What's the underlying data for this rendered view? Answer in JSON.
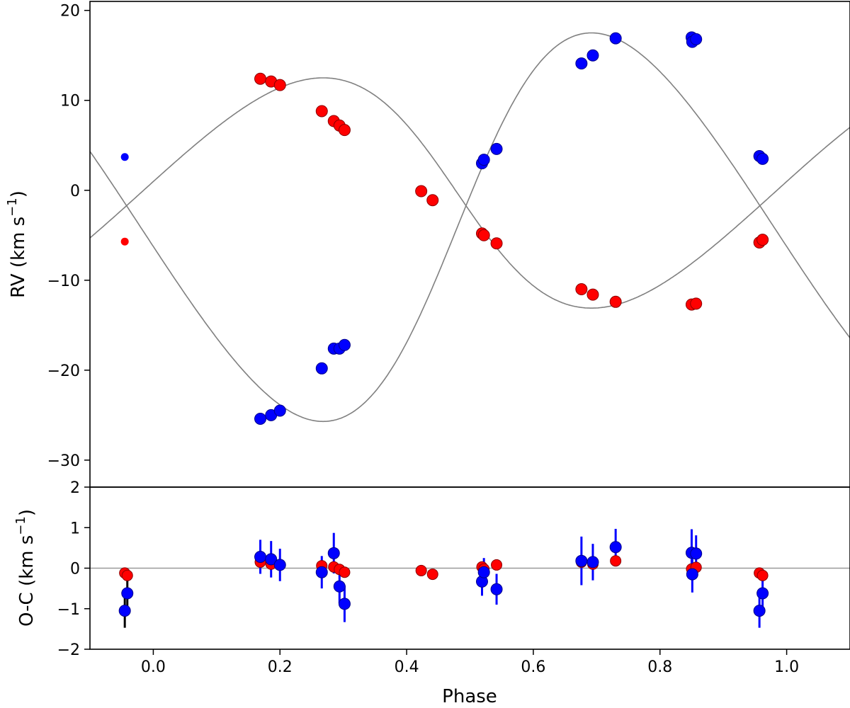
{
  "chart_data": [
    {
      "panel": "radial-velocity",
      "type": "scatter",
      "ylabel": "RV (km s",
      "ylabel_sup": "−1",
      "ylabel_close": ")",
      "xlim": [
        -0.1,
        1.1
      ],
      "ylim": [
        -33,
        21
      ],
      "yticks": [
        -30,
        -20,
        -10,
        0,
        10,
        20
      ],
      "ytick_labels": [
        "−30",
        "−20",
        "−10",
        "0",
        "10",
        "20"
      ],
      "grid": false,
      "model_color": "#808080",
      "series": [
        {
          "name": "secondary",
          "color": "#0000ff",
          "edge": "#00008b",
          "model": {
            "gamma": -4.1,
            "K": 21.6,
            "e": 0.12,
            "omega_deg": 270,
            "T0": 0.48
          },
          "points": [
            {
              "x": -0.045,
              "y": 3.7,
              "small": true
            },
            {
              "x": 0.169,
              "y": -25.4
            },
            {
              "x": 0.186,
              "y": -25.0
            },
            {
              "x": 0.2,
              "y": -24.5
            },
            {
              "x": 0.266,
              "y": -19.8
            },
            {
              "x": 0.285,
              "y": -17.6
            },
            {
              "x": 0.294,
              "y": -17.6
            },
            {
              "x": 0.302,
              "y": -17.2
            },
            {
              "x": 0.519,
              "y": 3.0
            },
            {
              "x": 0.522,
              "y": 3.4
            },
            {
              "x": 0.542,
              "y": 4.6
            },
            {
              "x": 0.676,
              "y": 14.1
            },
            {
              "x": 0.694,
              "y": 15.0
            },
            {
              "x": 0.73,
              "y": 16.9
            },
            {
              "x": 0.85,
              "y": 17.0
            },
            {
              "x": 0.851,
              "y": 16.5
            },
            {
              "x": 0.857,
              "y": 16.8
            },
            {
              "x": 0.957,
              "y": 3.8
            },
            {
              "x": 0.962,
              "y": 3.5
            }
          ]
        },
        {
          "name": "primary",
          "color": "#ff0000",
          "edge": "#8b0000",
          "model": {
            "gamma": -0.3,
            "K": 12.8,
            "e": 0.12,
            "omega_deg": 90,
            "T0": 0.48
          },
          "points": [
            {
              "x": -0.045,
              "y": -5.7,
              "small": true
            },
            {
              "x": 0.169,
              "y": 12.4
            },
            {
              "x": 0.186,
              "y": 12.1
            },
            {
              "x": 0.2,
              "y": 11.7
            },
            {
              "x": 0.266,
              "y": 8.8
            },
            {
              "x": 0.285,
              "y": 7.7
            },
            {
              "x": 0.294,
              "y": 7.2
            },
            {
              "x": 0.302,
              "y": 6.7
            },
            {
              "x": 0.423,
              "y": -0.1
            },
            {
              "x": 0.441,
              "y": -1.1
            },
            {
              "x": 0.519,
              "y": -4.8
            },
            {
              "x": 0.522,
              "y": -5.0
            },
            {
              "x": 0.542,
              "y": -5.9
            },
            {
              "x": 0.676,
              "y": -11.0
            },
            {
              "x": 0.694,
              "y": -11.6
            },
            {
              "x": 0.73,
              "y": -12.4
            },
            {
              "x": 0.85,
              "y": -12.7
            },
            {
              "x": 0.857,
              "y": -12.6
            },
            {
              "x": 0.957,
              "y": -5.8
            },
            {
              "x": 0.962,
              "y": -5.5
            }
          ]
        }
      ]
    },
    {
      "panel": "residuals",
      "type": "scatter",
      "xlabel": "Phase",
      "ylabel": "O-C (km s",
      "ylabel_sup": "−1",
      "ylabel_close": ")",
      "xlim": [
        -0.1,
        1.1
      ],
      "ylim": [
        -2,
        2
      ],
      "xticks": [
        0.0,
        0.2,
        0.4,
        0.6,
        0.8,
        1.0
      ],
      "xtick_labels": [
        "0.0",
        "0.2",
        "0.4",
        "0.6",
        "0.8",
        "1.0"
      ],
      "yticks": [
        -2,
        -1,
        0,
        1,
        2
      ],
      "ytick_labels": [
        "−2",
        "−1",
        "0",
        "1",
        "2"
      ],
      "zero_line": 0,
      "series": [
        {
          "name": "secondary",
          "color": "#0000ff",
          "edge": "#00008b",
          "errorbar_color": "#0000ff",
          "points": [
            {
              "x": -0.045,
              "y": -1.05,
              "err": 0.42,
              "errcolor": "#000000"
            },
            {
              "x": -0.041,
              "y": -0.62,
              "err": 0.42,
              "errcolor": "#000000"
            },
            {
              "x": 0.169,
              "y": 0.28,
              "err": 0.42
            },
            {
              "x": 0.186,
              "y": 0.22,
              "err": 0.45
            },
            {
              "x": 0.2,
              "y": 0.08,
              "err": 0.4
            },
            {
              "x": 0.266,
              "y": -0.1,
              "err": 0.4
            },
            {
              "x": 0.285,
              "y": 0.37,
              "err": 0.5
            },
            {
              "x": 0.294,
              "y": -0.45,
              "err": 0.42
            },
            {
              "x": 0.302,
              "y": -0.88,
              "err": 0.45
            },
            {
              "x": 0.519,
              "y": -0.33,
              "err": 0.35
            },
            {
              "x": 0.522,
              "y": -0.1,
              "err": 0.35
            },
            {
              "x": 0.542,
              "y": -0.52,
              "err": 0.38
            },
            {
              "x": 0.676,
              "y": 0.18,
              "err": 0.6
            },
            {
              "x": 0.694,
              "y": 0.15,
              "err": 0.45
            },
            {
              "x": 0.73,
              "y": 0.52,
              "err": 0.45
            },
            {
              "x": 0.85,
              "y": 0.38,
              "err": 0.58
            },
            {
              "x": 0.851,
              "y": -0.15,
              "err": 0.45
            },
            {
              "x": 0.857,
              "y": 0.36,
              "err": 0.45
            },
            {
              "x": 0.957,
              "y": -1.05,
              "err": 0.42
            },
            {
              "x": 0.962,
              "y": -0.62,
              "err": 0.42
            }
          ]
        },
        {
          "name": "primary",
          "color": "#ff0000",
          "edge": "#8b0000",
          "points": [
            {
              "x": -0.045,
              "y": -0.12
            },
            {
              "x": -0.041,
              "y": -0.18
            },
            {
              "x": 0.169,
              "y": 0.15
            },
            {
              "x": 0.186,
              "y": 0.1
            },
            {
              "x": 0.2,
              "y": 0.08
            },
            {
              "x": 0.266,
              "y": 0.06
            },
            {
              "x": 0.285,
              "y": 0.03
            },
            {
              "x": 0.294,
              "y": -0.03
            },
            {
              "x": 0.302,
              "y": -0.1
            },
            {
              "x": 0.423,
              "y": -0.06
            },
            {
              "x": 0.441,
              "y": -0.15
            },
            {
              "x": 0.519,
              "y": 0.03
            },
            {
              "x": 0.522,
              "y": -0.02
            },
            {
              "x": 0.542,
              "y": 0.08
            },
            {
              "x": 0.676,
              "y": 0.15
            },
            {
              "x": 0.694,
              "y": 0.1
            },
            {
              "x": 0.73,
              "y": 0.18
            },
            {
              "x": 0.85,
              "y": -0.02
            },
            {
              "x": 0.857,
              "y": 0.02
            },
            {
              "x": 0.957,
              "y": -0.12
            },
            {
              "x": 0.962,
              "y": -0.18
            }
          ]
        }
      ]
    }
  ]
}
